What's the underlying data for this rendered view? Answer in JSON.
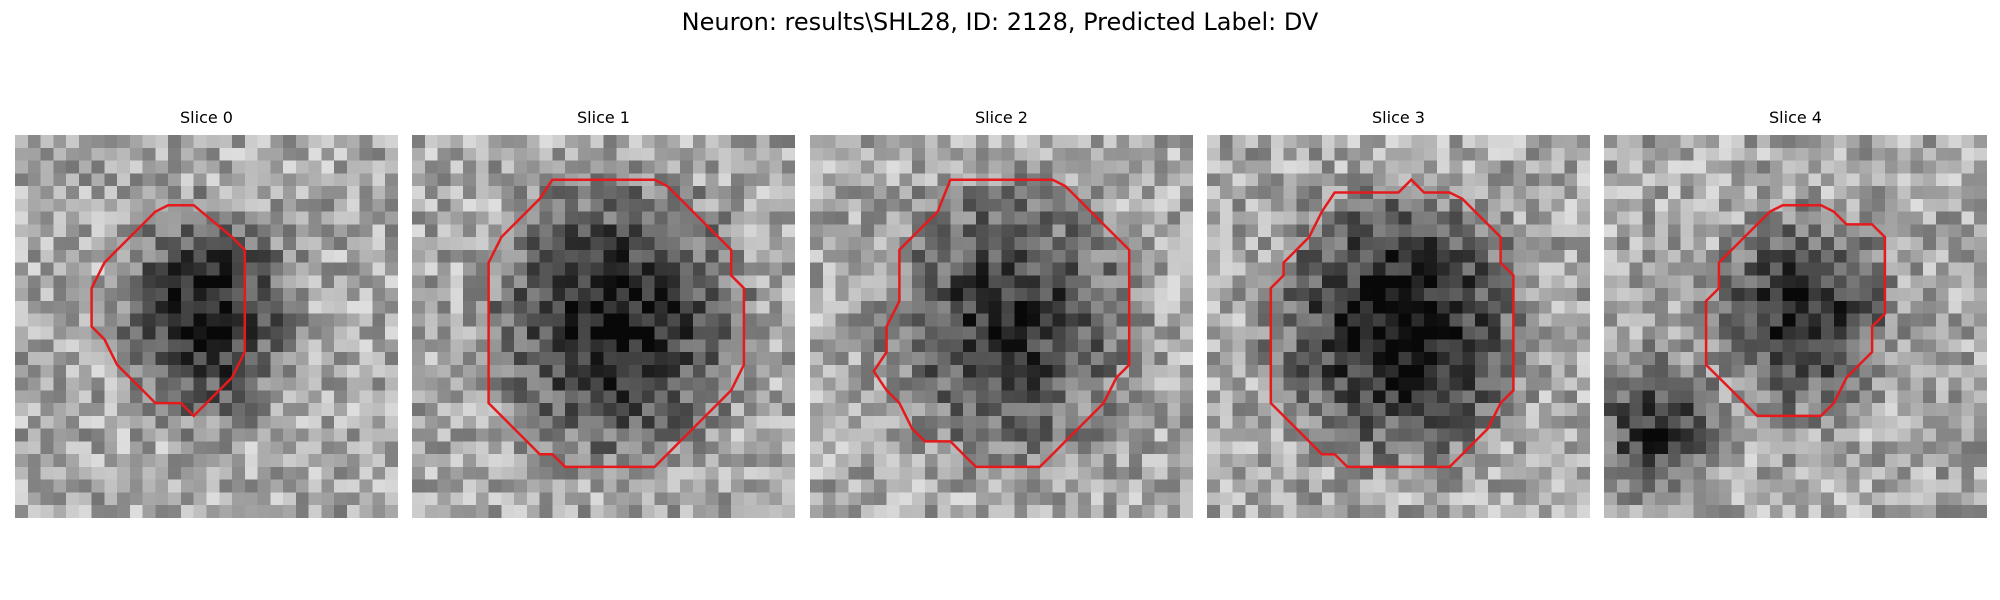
{
  "figure": {
    "title": "Neuron: results\\SHL28, ID: 2128, Predicted Label: DV"
  },
  "contour_color": "#e41a1c",
  "panels": [
    {
      "title": "Slice 0",
      "contour": [
        [
          12,
          5.5
        ],
        [
          14,
          5.5
        ],
        [
          17,
          8
        ],
        [
          18,
          9
        ],
        [
          18,
          17
        ],
        [
          17,
          19
        ],
        [
          16,
          20
        ],
        [
          15,
          21
        ],
        [
          14,
          22
        ],
        [
          13,
          21
        ],
        [
          11,
          21
        ],
        [
          10,
          20
        ],
        [
          9,
          19
        ],
        [
          8,
          18
        ],
        [
          7,
          16
        ],
        [
          6,
          15
        ],
        [
          6,
          13
        ],
        [
          6,
          12
        ],
        [
          7,
          10
        ],
        [
          8,
          9
        ],
        [
          9,
          8
        ],
        [
          10,
          7
        ],
        [
          11,
          6
        ]
      ]
    },
    {
      "title": "Slice 1",
      "contour": [
        [
          11,
          3.5
        ],
        [
          19,
          3.5
        ],
        [
          20,
          4
        ],
        [
          21,
          5
        ],
        [
          22,
          6
        ],
        [
          23,
          7
        ],
        [
          24,
          8
        ],
        [
          25,
          9
        ],
        [
          25,
          11
        ],
        [
          26,
          12
        ],
        [
          26,
          18
        ],
        [
          25,
          20
        ],
        [
          24,
          21
        ],
        [
          23,
          22
        ],
        [
          22,
          23
        ],
        [
          21,
          24
        ],
        [
          20,
          25
        ],
        [
          19,
          26
        ],
        [
          12,
          26
        ],
        [
          11,
          25
        ],
        [
          10,
          25
        ],
        [
          9,
          24
        ],
        [
          8,
          23
        ],
        [
          7,
          22
        ],
        [
          6,
          21
        ],
        [
          6,
          19
        ],
        [
          6,
          10
        ],
        [
          7,
          8
        ],
        [
          8,
          7
        ],
        [
          9,
          6
        ],
        [
          10,
          5
        ]
      ]
    },
    {
      "title": "Slice 2",
      "contour": [
        [
          11,
          3.5
        ],
        [
          19,
          3.5
        ],
        [
          20,
          4
        ],
        [
          21,
          5
        ],
        [
          22,
          6
        ],
        [
          23,
          7
        ],
        [
          24,
          8
        ],
        [
          25,
          9
        ],
        [
          25,
          18
        ],
        [
          24,
          19
        ],
        [
          23,
          21
        ],
        [
          22,
          22
        ],
        [
          21,
          23
        ],
        [
          20,
          24
        ],
        [
          19,
          25
        ],
        [
          18,
          26
        ],
        [
          13,
          26
        ],
        [
          12,
          25
        ],
        [
          11,
          24
        ],
        [
          9,
          24
        ],
        [
          8,
          23
        ],
        [
          7,
          21
        ],
        [
          6,
          20
        ],
        [
          5,
          18.5
        ],
        [
          6,
          17
        ],
        [
          6,
          15
        ],
        [
          7,
          13
        ],
        [
          7,
          9
        ],
        [
          8,
          8
        ],
        [
          9,
          7
        ],
        [
          10,
          6
        ]
      ]
    },
    {
      "title": "Slice 3",
      "contour": [
        [
          10,
          4.5
        ],
        [
          15,
          4.5
        ],
        [
          16,
          3.5
        ],
        [
          17,
          4.5
        ],
        [
          19,
          4.5
        ],
        [
          20,
          5
        ],
        [
          21,
          6
        ],
        [
          22,
          7
        ],
        [
          23,
          8
        ],
        [
          23,
          10
        ],
        [
          24,
          11
        ],
        [
          24,
          20
        ],
        [
          23,
          21
        ],
        [
          22,
          23
        ],
        [
          21,
          24
        ],
        [
          20,
          25
        ],
        [
          19,
          26
        ],
        [
          11,
          26
        ],
        [
          10,
          25
        ],
        [
          9,
          25
        ],
        [
          8,
          24
        ],
        [
          7,
          23
        ],
        [
          6,
          22
        ],
        [
          5,
          21
        ],
        [
          5,
          12
        ],
        [
          6,
          11
        ],
        [
          6,
          10
        ],
        [
          7,
          9
        ],
        [
          8,
          8
        ],
        [
          9,
          6
        ]
      ]
    },
    {
      "title": "Slice 4",
      "contour": [
        [
          13,
          6
        ],
        [
          14,
          5.5
        ],
        [
          17,
          5.5
        ],
        [
          18,
          6
        ],
        [
          19,
          7
        ],
        [
          21,
          7
        ],
        [
          22,
          8
        ],
        [
          22,
          14
        ],
        [
          21,
          15
        ],
        [
          21,
          17
        ],
        [
          20,
          18
        ],
        [
          19,
          19
        ],
        [
          18,
          21
        ],
        [
          17,
          22
        ],
        [
          12,
          22
        ],
        [
          11,
          21
        ],
        [
          10,
          20
        ],
        [
          9,
          19
        ],
        [
          8,
          18
        ],
        [
          8,
          13
        ],
        [
          9,
          12
        ],
        [
          9,
          10
        ],
        [
          10,
          9
        ],
        [
          11,
          8
        ],
        [
          12,
          7
        ]
      ]
    }
  ]
}
